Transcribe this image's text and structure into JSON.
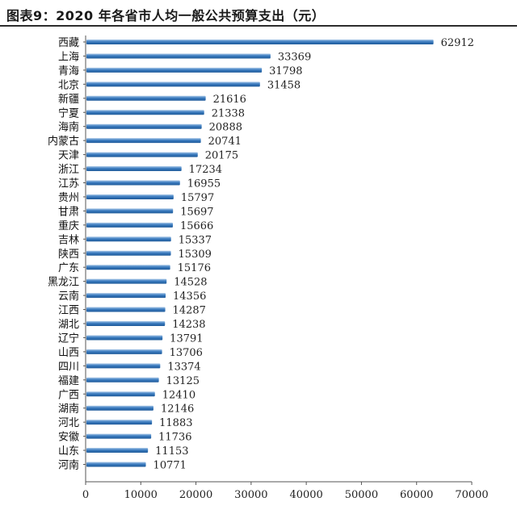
{
  "title": "图表9：2020 年各省市人均一般公共预算支出（元）",
  "chart_data": {
    "type": "bar",
    "orientation": "horizontal",
    "title": "图表9：2020 年各省市人均一般公共预算支出（元）",
    "xlabel": "",
    "ylabel": "",
    "xlim": [
      0,
      70000
    ],
    "x_ticks": [
      "0",
      "10000",
      "20000",
      "30000",
      "40000",
      "50000",
      "60000",
      "70000"
    ],
    "grid": false,
    "bar_color": "#3a7bbf",
    "categories": [
      "西藏",
      "上海",
      "青海",
      "北京",
      "新疆",
      "宁夏",
      "海南",
      "内蒙古",
      "天津",
      "浙江",
      "江苏",
      "贵州",
      "甘肃",
      "重庆",
      "吉林",
      "陕西",
      "广东",
      "黑龙江",
      "云南",
      "江西",
      "湖北",
      "辽宁",
      "山西",
      "四川",
      "福建",
      "广西",
      "湖南",
      "河北",
      "安徽",
      "山东",
      "河南"
    ],
    "values": [
      62912,
      33369,
      31798,
      31458,
      21616,
      21338,
      20888,
      20741,
      20175,
      17234,
      16955,
      15797,
      15697,
      15666,
      15337,
      15309,
      15176,
      14528,
      14356,
      14287,
      14238,
      13791,
      13706,
      13374,
      13125,
      12410,
      12146,
      11883,
      11736,
      11153,
      10771
    ],
    "value_labels": [
      "62912",
      "33369",
      "31798",
      "31458",
      "21616",
      "21338",
      "20888",
      "20741",
      "20175",
      "17234",
      "16955",
      "15797",
      "15697",
      "15666",
      "15337",
      "15309",
      "15176",
      "14528",
      "14356",
      "14287",
      "14238",
      "13791",
      "13706",
      "13374",
      "13125",
      "12410",
      "12146",
      "11883",
      "11736",
      "11153",
      "10771"
    ]
  }
}
